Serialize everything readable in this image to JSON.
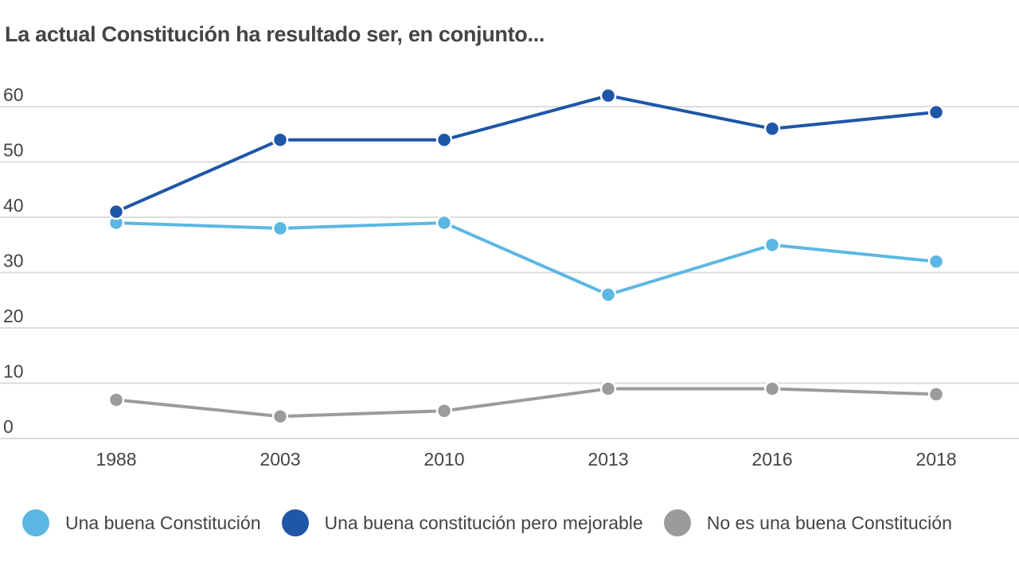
{
  "chart_data": {
    "type": "line",
    "title": "La actual Constitución ha resultado ser, en conjunto...",
    "xlabel": "",
    "ylabel": "",
    "categories": [
      "1988",
      "2003",
      "2010",
      "2013",
      "2016",
      "2018"
    ],
    "yticks": [
      "0",
      "10",
      "20",
      "30",
      "40",
      "50",
      "60"
    ],
    "ylim": [
      0,
      60
    ],
    "grid": true,
    "legend_position": "bottom",
    "series": [
      {
        "name": "Una buena Constitución",
        "color": "#5db7e3",
        "values": [
          39,
          38,
          39,
          26,
          35,
          32
        ]
      },
      {
        "name": "Una buena constitución pero mejorable",
        "color": "#1f56a8",
        "values": [
          41,
          54,
          54,
          62,
          56,
          59
        ]
      },
      {
        "name": "No es una buena Constitución",
        "color": "#9b9b9b",
        "values": [
          7,
          4,
          5,
          9,
          9,
          8
        ]
      }
    ]
  }
}
